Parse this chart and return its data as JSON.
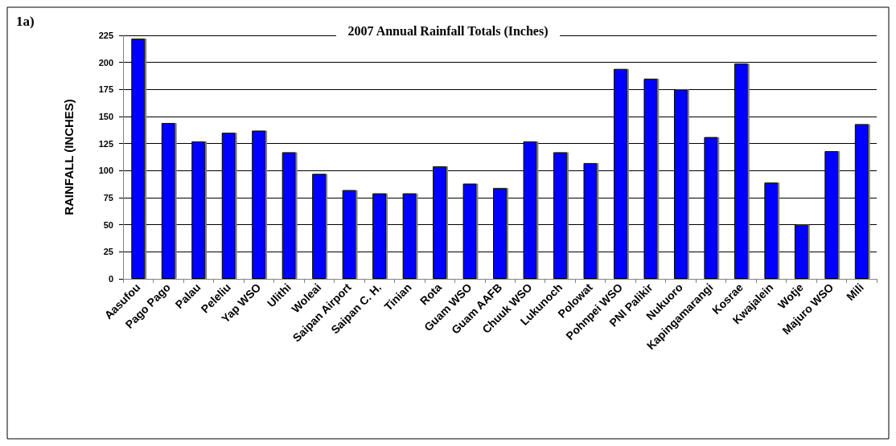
{
  "chart_data": {
    "type": "bar",
    "title": "2007 Annual Rainfall Totals (Inches)",
    "ylabel": "RAINFALL (INCHES)",
    "annotations": [
      "1a)"
    ],
    "categories": [
      "Aasufou",
      "Pago Pago",
      "Palau",
      "Peleliu",
      "Yap WSO",
      "Ulithi",
      "Woleai",
      "Saipan Airport",
      "Saipan C. H.",
      "Tinian",
      "Rota",
      "Guam WSO",
      "Guam AAFB",
      "Chuuk WSO",
      "Lukunoch",
      "Polowat",
      "Pohnpei WSO",
      "PNI Palikir",
      "Nukuoro",
      "Kapingamarangi",
      "Kosrae",
      "Kwajalein",
      "Wotje",
      "Majuro WSO",
      "Mili"
    ],
    "values": [
      222,
      144,
      127,
      135,
      137,
      117,
      97,
      82,
      79,
      79,
      104,
      88,
      84,
      127,
      117,
      107,
      194,
      185,
      175,
      131,
      199,
      89,
      50,
      118,
      143
    ],
    "color": "#0000ff",
    "ylim": [
      0,
      225
    ],
    "yticks": [
      0,
      25,
      50,
      75,
      100,
      125,
      150,
      175,
      200,
      225
    ],
    "grid": "y"
  }
}
